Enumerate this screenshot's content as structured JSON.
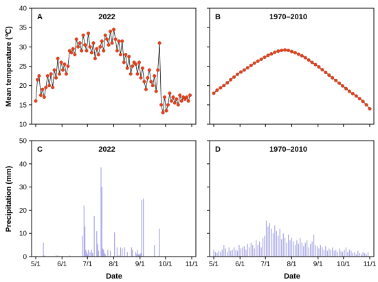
{
  "figure": {
    "ylabel_top": "Mean temperature (℃)",
    "ylabel_bottom": "Precipitation  (mm)",
    "xlabel": "Date"
  },
  "chart_data": [
    {
      "panel": "A",
      "type": "line",
      "title": "2022",
      "ylim": [
        10,
        40
      ],
      "yticks": [
        10,
        15,
        20,
        25,
        30,
        35,
        40
      ],
      "xlim": [
        0,
        184
      ],
      "xticks": [
        0,
        31,
        61,
        92,
        123,
        153,
        184
      ],
      "xtick_labels": [
        "5/1",
        "6/1",
        "7/1",
        "8/1",
        "9/1",
        "10/1",
        "11/1"
      ],
      "xlabel": "",
      "ylabel": "Mean temperature (℃)",
      "series": [
        {
          "line_color": "#1a1a1a",
          "marker_color": "#e8401a",
          "x": [
            0,
            2,
            4,
            6,
            8,
            10,
            12,
            14,
            16,
            18,
            20,
            22,
            24,
            26,
            28,
            30,
            32,
            34,
            36,
            38,
            40,
            42,
            44,
            46,
            48,
            50,
            52,
            54,
            56,
            58,
            60,
            62,
            64,
            66,
            68,
            70,
            72,
            74,
            76,
            78,
            80,
            82,
            84,
            86,
            88,
            90,
            92,
            94,
            96,
            98,
            100,
            102,
            104,
            106,
            108,
            110,
            112,
            114,
            116,
            118,
            120,
            122,
            124,
            126,
            128,
            130,
            132,
            134,
            136,
            138,
            140,
            142,
            144,
            146,
            148,
            150,
            152,
            154,
            156,
            158,
            160,
            162,
            164,
            166,
            168,
            170,
            172,
            174,
            176,
            178,
            180,
            182
          ],
          "y": [
            16,
            21.5,
            22.5,
            17.5,
            19,
            17,
            19.5,
            22.5,
            20,
            23,
            19.5,
            24,
            22,
            27,
            23,
            26,
            24,
            25.5,
            23,
            25,
            29,
            28.5,
            29.5,
            28,
            32,
            30,
            31,
            29,
            33,
            30.5,
            29,
            33.5,
            30,
            28.5,
            31,
            27,
            29.5,
            28,
            30,
            31.5,
            29,
            33,
            32,
            30.5,
            34,
            31,
            34.5,
            32,
            29,
            31.5,
            28,
            31.5,
            26,
            28,
            24.5,
            27.5,
            23,
            25,
            26,
            25.5,
            23,
            26,
            22,
            24.5,
            21,
            19,
            22,
            24,
            21,
            20,
            22.5,
            18.5,
            24,
            31,
            15,
            13,
            17,
            13.5,
            15,
            18,
            16,
            17,
            15.5,
            16.5,
            15,
            17.5,
            16,
            17,
            16.5,
            17,
            16,
            17.5
          ]
        }
      ]
    },
    {
      "panel": "B",
      "type": "line",
      "title": "1970–2010",
      "ylim": [
        10,
        40
      ],
      "yticks": [
        10,
        15,
        20,
        25,
        30,
        35,
        40
      ],
      "xlim": [
        0,
        184
      ],
      "xticks": [
        0,
        31,
        61,
        92,
        123,
        153,
        184
      ],
      "xtick_labels": [
        "5/1",
        "6/1",
        "7/1",
        "8/1",
        "9/1",
        "10/1",
        "11/1"
      ],
      "xlabel": "",
      "ylabel": "",
      "series": [
        {
          "line_color": "#1a1a1a",
          "marker_color": "#e8401a",
          "x": [
            0,
            4,
            8,
            12,
            16,
            20,
            24,
            28,
            32,
            36,
            40,
            44,
            48,
            52,
            56,
            60,
            64,
            68,
            72,
            76,
            80,
            84,
            88,
            92,
            96,
            100,
            104,
            108,
            112,
            116,
            120,
            124,
            128,
            132,
            136,
            140,
            144,
            148,
            152,
            156,
            160,
            164,
            168,
            172,
            176,
            180,
            184
          ],
          "y": [
            18,
            18.8,
            19.4,
            20,
            20.7,
            21.5,
            22.2,
            22.9,
            23.5,
            24,
            24.6,
            25.2,
            25.8,
            26.3,
            26.8,
            27.3,
            27.8,
            28.2,
            28.6,
            28.9,
            29.1,
            29.2,
            29.1,
            28.8,
            28.5,
            28.1,
            27.7,
            27.2,
            26.6,
            26,
            25.4,
            24.8,
            24.1,
            23.4,
            22.7,
            22,
            21.3,
            20.6,
            19.9,
            19.2,
            18.5,
            17.9,
            17.3,
            16.6,
            15.9,
            15,
            14
          ]
        }
      ]
    },
    {
      "panel": "C",
      "type": "bar",
      "title": "2022",
      "ylim": [
        0,
        50
      ],
      "yticks": [
        0,
        10,
        20,
        30,
        40,
        50
      ],
      "xlim": [
        0,
        184
      ],
      "xticks": [
        0,
        31,
        61,
        92,
        123,
        153,
        184
      ],
      "xtick_labels": [
        "5/1",
        "6/1",
        "7/1",
        "8/1",
        "9/1",
        "10/1",
        "11/1"
      ],
      "xlabel": "Date",
      "ylabel": "Precipitation  (mm)",
      "bar_color": "#a6a6e6",
      "x": [
        9,
        10,
        24,
        26,
        40,
        55,
        57,
        58,
        59,
        60,
        61,
        62,
        64,
        66,
        67,
        69,
        72,
        73,
        74,
        77,
        78,
        79,
        80,
        81,
        82,
        85,
        88,
        93,
        96,
        98,
        100,
        102,
        105,
        108,
        113,
        114,
        118,
        119,
        120,
        121,
        122,
        123,
        124,
        125,
        127,
        140,
        146
      ],
      "values": [
        6,
        0.5,
        0.5,
        0.5,
        0.5,
        9,
        22,
        13,
        3,
        2,
        1,
        3,
        2,
        3,
        1.5,
        17.5,
        11,
        5.5,
        2.5,
        38.5,
        30,
        3.5,
        3,
        1.5,
        1,
        3,
        2.5,
        10.5,
        4,
        0.5,
        4,
        3.5,
        4,
        2,
        4,
        3,
        2,
        1,
        3,
        1,
        1,
        1,
        1.5,
        24.5,
        25,
        5,
        12
      ]
    },
    {
      "panel": "D",
      "type": "bar",
      "title": "1970–2010",
      "ylim": [
        0,
        50
      ],
      "yticks": [
        0,
        10,
        20,
        30,
        40,
        50
      ],
      "xlim": [
        0,
        184
      ],
      "xticks": [
        0,
        31,
        61,
        92,
        123,
        153,
        184
      ],
      "xtick_labels": [
        "5/1",
        "6/1",
        "7/1",
        "8/1",
        "9/1",
        "10/1",
        "11/1"
      ],
      "xlabel": "Date",
      "ylabel": "",
      "bar_color": "#a6a6e6",
      "x": [
        0,
        2,
        4,
        6,
        8,
        10,
        12,
        14,
        16,
        18,
        20,
        22,
        24,
        26,
        28,
        30,
        32,
        34,
        36,
        38,
        40,
        42,
        44,
        46,
        48,
        50,
        52,
        54,
        56,
        58,
        60,
        62,
        64,
        66,
        68,
        70,
        72,
        74,
        76,
        78,
        80,
        82,
        84,
        86,
        88,
        90,
        92,
        94,
        96,
        98,
        100,
        102,
        104,
        106,
        108,
        110,
        112,
        114,
        116,
        118,
        120,
        122,
        124,
        126,
        128,
        130,
        132,
        134,
        136,
        138,
        140,
        142,
        144,
        146,
        148,
        150,
        152,
        154,
        156,
        158,
        160,
        162,
        164,
        166,
        168,
        170,
        172,
        174,
        176,
        178,
        180,
        182
      ],
      "values": [
        3,
        2,
        1.5,
        2.5,
        2,
        3,
        5,
        3.5,
        2,
        4,
        2.5,
        3,
        4,
        3,
        2.5,
        5,
        3.5,
        4,
        4.5,
        3,
        5.5,
        4,
        6,
        5,
        3.5,
        7,
        5,
        6.5,
        4,
        8,
        9,
        15.5,
        13,
        14.5,
        12,
        10,
        13.5,
        11,
        9,
        12,
        7.5,
        10,
        8,
        6,
        9.5,
        7,
        8,
        6.5,
        5,
        7,
        5.5,
        8,
        6,
        4.5,
        6,
        7,
        4,
        5.5,
        6.5,
        9.5,
        5,
        4.5,
        3.5,
        5,
        4,
        3,
        4.5,
        2.5,
        3.5,
        3,
        4,
        2.5,
        3,
        2,
        3.5,
        2.5,
        2,
        3,
        4,
        2,
        3,
        2.5,
        1.5,
        2,
        1,
        2.5,
        1.5,
        1,
        2,
        1.5,
        1,
        2
      ]
    }
  ]
}
